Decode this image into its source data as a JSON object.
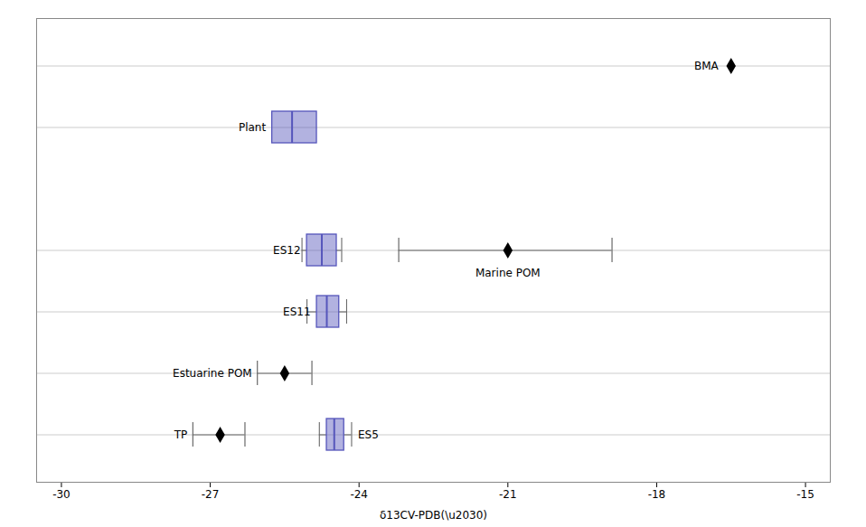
{
  "chart_data": {
    "type": "box",
    "xlabel": "δ13CV-PDB(\\u2030)",
    "xlim": [
      -30.5,
      -14.5
    ],
    "xticks": [
      -30,
      -27,
      -24,
      -21,
      -18,
      -15
    ],
    "tick_labels": "x",
    "grid": true,
    "categories": [
      null,
      null,
      null,
      null,
      null,
      null,
      null
    ],
    "series": [
      {
        "type": "box",
        "color": "#5555bb",
        "values": [
          null,
          {
            "label": "Plant",
            "whisker_low": -25.75,
            "q1": -25.75,
            "median": -25.35,
            "q3": -24.85,
            "whisker_high": -24.85
          },
          null,
          {
            "label": "ES12",
            "whisker_low": -25.15,
            "q1": -25.05,
            "median": -24.75,
            "q3": -24.45,
            "whisker_high": -24.35
          },
          {
            "label": "ES11",
            "whisker_low": -25.05,
            "q1": -24.85,
            "median": -24.65,
            "q3": -24.4,
            "whisker_high": -24.25
          },
          null,
          {
            "label": "ES5",
            "whisker_low": -24.8,
            "q1": -24.65,
            "median": -24.5,
            "q3": -24.3,
            "whisker_high": -24.15
          }
        ]
      },
      {
        "type": "scatter",
        "marker": "diamond",
        "color": "black",
        "values": [
          {
            "label": "BMA",
            "x": -16.5,
            "xerr_low": null,
            "xerr_high": null
          },
          null,
          null,
          {
            "label": "Marine POM",
            "x": -21.0,
            "xerr_low": -23.2,
            "xerr_high": -18.9
          },
          null,
          {
            "label": "Estuarine POM",
            "x": -25.5,
            "xerr_low": -26.05,
            "xerr_high": -24.95
          },
          {
            "label": "TP",
            "x": -26.8,
            "xerr_low": -27.35,
            "xerr_high": -26.3
          }
        ]
      }
    ]
  }
}
